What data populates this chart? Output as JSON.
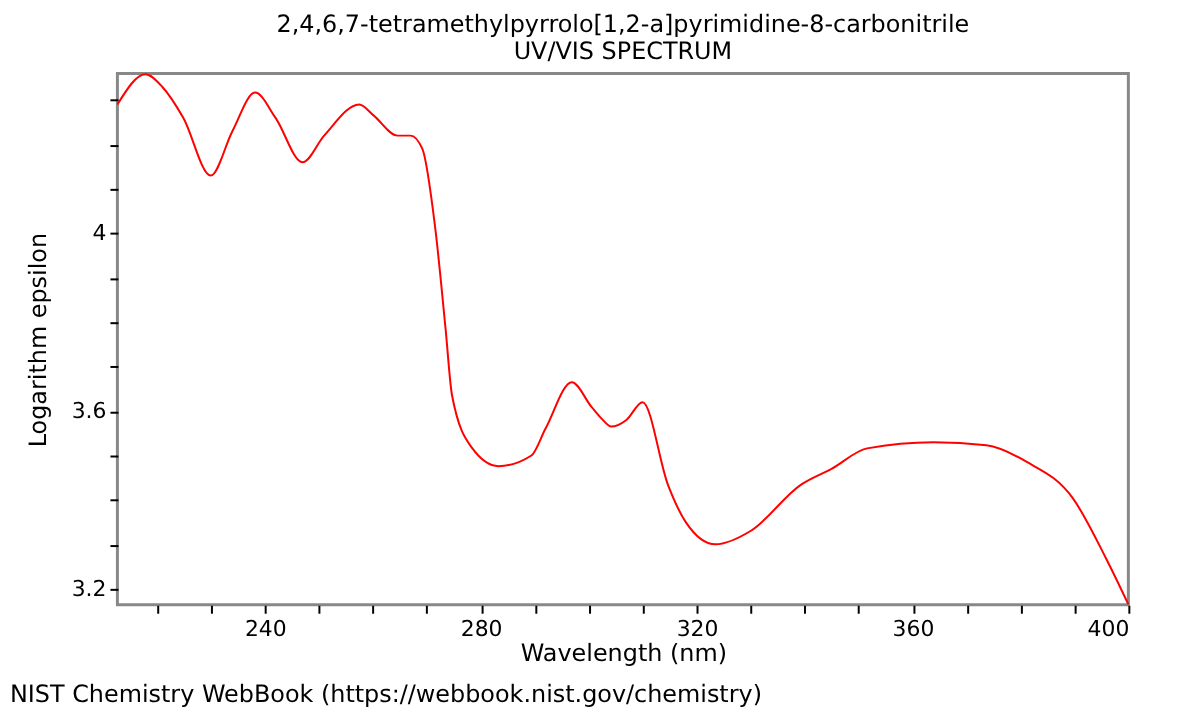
{
  "chart_data": {
    "type": "line",
    "title": "2,4,6,7-tetramethylpyrrolo[1,2-a]pyrimidine-8-carbonitrile",
    "subtitle": "UV/VIS SPECTRUM",
    "xlabel": "Wavelength (nm)",
    "ylabel": "Logarithm epsilon",
    "annotations": [
      "NIST Chemistry WebBook (https://webbook.nist.gov/chemistry)"
    ],
    "xlim": [
      212.7,
      400
    ],
    "ylim": [
      3.164,
      4.36
    ],
    "xticks": [
      {
        "value": 220,
        "label": null
      },
      {
        "value": 230,
        "label": null
      },
      240,
      {
        "value": 250,
        "label": null
      },
      {
        "value": 260,
        "label": null
      },
      {
        "value": 270,
        "label": null
      },
      280,
      {
        "value": 290,
        "label": null
      },
      {
        "value": 300,
        "label": null
      },
      {
        "value": 310,
        "label": null
      },
      320,
      {
        "value": 330,
        "label": null
      },
      {
        "value": 340,
        "label": null
      },
      {
        "value": 350,
        "label": null
      },
      360,
      {
        "value": 370,
        "label": null
      },
      {
        "value": 380,
        "label": null
      },
      {
        "value": 390,
        "label": null
      },
      400
    ],
    "yticks": [
      3.2,
      {
        "value": 3.3,
        "label": null
      },
      {
        "value": 3.4,
        "label": null
      },
      {
        "value": 3.5,
        "label": null
      },
      3.6,
      {
        "value": 3.7,
        "label": null
      },
      {
        "value": 3.8,
        "label": null
      },
      {
        "value": 3.9,
        "label": null
      },
      4,
      {
        "value": 4.1,
        "label": null
      },
      {
        "value": 4.2,
        "label": null
      },
      {
        "value": 4.3,
        "label": null
      }
    ],
    "grid": false,
    "marker": "none",
    "line_style": "solid",
    "x": [
      212.7,
      217.9,
      221,
      224.9,
      230,
      234,
      238.2,
      242,
      247,
      251,
      257.5,
      260.2,
      264.6,
      267,
      269.2,
      271.6,
      273.5,
      274.7,
      278.4,
      283.3,
      289.4,
      292,
      296.9,
      300.5,
      302.4,
      304.2,
      307,
      310,
      314.7,
      318,
      323.5,
      330,
      339.3,
      345,
      351.6,
      363.9,
      373.7,
      381.1,
      389.7,
      395.8,
      400
    ],
    "series": [
      {
        "color": "#ff0000",
        "values": [
          4.29,
          4.358,
          4.33,
          4.26,
          4.13,
          4.23,
          4.317,
          4.26,
          4.16,
          4.22,
          4.29,
          4.265,
          4.22,
          4.22,
          4.19,
          4.01,
          3.785,
          3.635,
          3.517,
          3.476,
          3.5,
          3.56,
          3.665,
          3.61,
          3.583,
          3.565,
          3.58,
          3.62,
          3.434,
          3.35,
          3.3,
          3.33,
          3.434,
          3.47,
          3.516,
          3.53,
          3.523,
          3.486,
          3.404,
          3.27,
          3.165
        ]
      }
    ]
  }
}
